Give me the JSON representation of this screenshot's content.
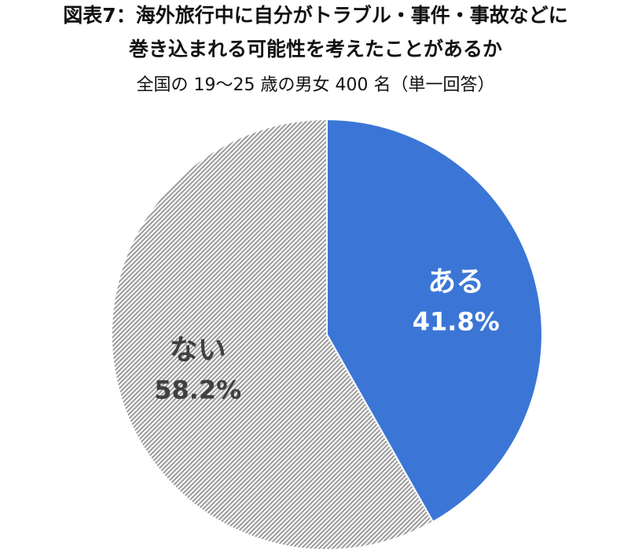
{
  "header": {
    "title_line1": "図表7：海外旅行中に自分がトラブル・事件・事故などに",
    "title_line2": "巻き込まれる可能性を考えたことがあるか",
    "subtitle": "全国の 19～25 歳の男女 400 名（単一回答）"
  },
  "chart_data": {
    "type": "pie",
    "title": "図表7：海外旅行中に自分がトラブル・事件・事故などに 巻き込まれる可能性を考えたことがあるか",
    "subtitle": "全国の 19～25 歳の男女 400 名（単一回答）",
    "start": "12 o'clock",
    "direction": "clockwise",
    "slices": [
      {
        "label": "ある",
        "value": 41.8,
        "value_label": "41.8%",
        "color": "#3B76D6",
        "fill": "solid",
        "label_color": "#ffffff"
      },
      {
        "label": "ない",
        "value": 58.2,
        "value_label": "58.2%",
        "color": "#A6A6A6",
        "fill": "diagonal-hatch",
        "label_color": "#404040"
      }
    ],
    "legend": "none"
  }
}
